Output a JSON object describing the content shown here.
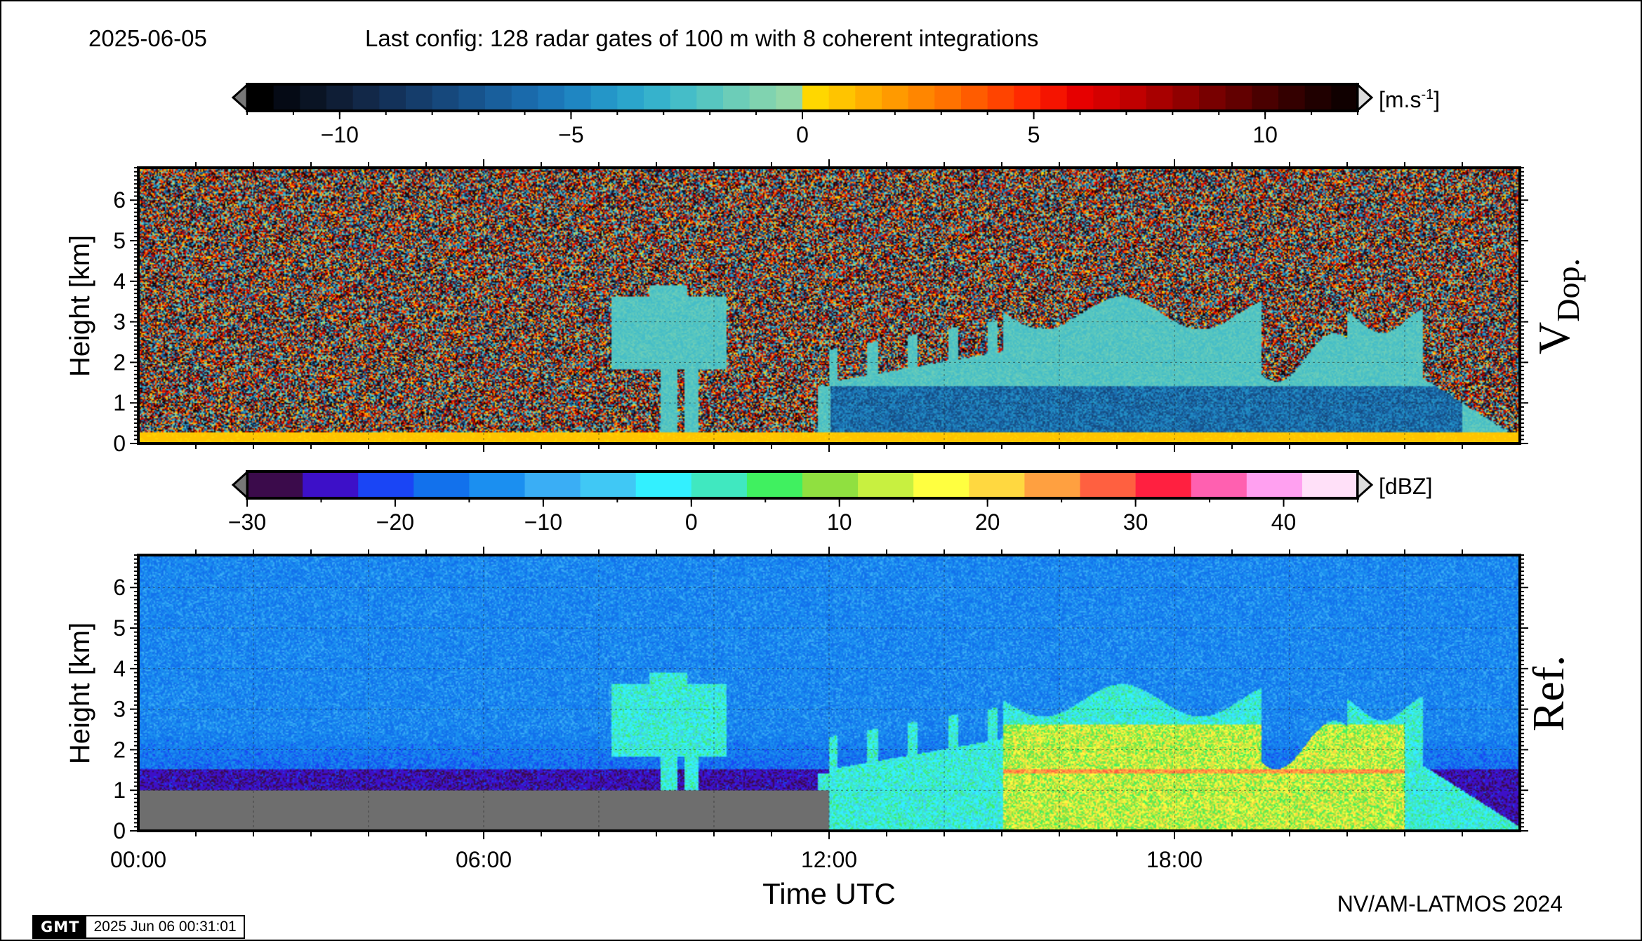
{
  "header": {
    "date": "2025-06-05",
    "config": "Last config: 128 radar gates of 100 m with 8 coherent integrations"
  },
  "footer": {
    "credit": "NV/AM-LATMOS 2024",
    "gmt_logo": "GMT",
    "gmt_timestamp": "2025 Jun 06 00:31:01"
  },
  "chart_data": [
    {
      "type": "heatmap",
      "name": "vdop",
      "panel_label": "V",
      "panel_label_sub": "Dop.",
      "ylabel": "Height [km]",
      "ylim": [
        0,
        6.8
      ],
      "yticks": [
        0,
        1,
        2,
        3,
        4,
        5,
        6
      ],
      "xlim_hours": [
        0,
        24
      ],
      "grid": true,
      "colorbar": {
        "unit_base": "[m.s",
        "unit_sup": "-1",
        "unit_close": "]",
        "range": [
          -12,
          12
        ],
        "ticks": [
          -10,
          -5,
          0,
          5,
          10
        ],
        "tick_labels": [
          "−10",
          "−5",
          "0",
          "5",
          "10"
        ],
        "colors": [
          "#000000",
          "#050a15",
          "#0a1424",
          "#0f1e36",
          "#122848",
          "#13325a",
          "#153d6b",
          "#16487c",
          "#17538c",
          "#195f9c",
          "#1a6aab",
          "#1c77b8",
          "#1f86c2",
          "#2496c8",
          "#2ba5cc",
          "#36b2cc",
          "#45bdc8",
          "#57c6c0",
          "#6ccdb8",
          "#80d3b0",
          "#93d8a9",
          "#ffd700",
          "#ffc400",
          "#ffae00",
          "#ff9a00",
          "#ff8600",
          "#ff7200",
          "#ff5c00",
          "#ff4400",
          "#ff2a00",
          "#f51400",
          "#e60000",
          "#d40000",
          "#c00000",
          "#a80000",
          "#900000",
          "#780000",
          "#620000",
          "#4a0000",
          "#340000",
          "#200000",
          "#100000"
        ]
      }
    },
    {
      "type": "heatmap",
      "name": "reflectivity",
      "panel_label": "Ref.",
      "ylabel": "Height [km]",
      "xlabel": "Time UTC",
      "ylim": [
        0,
        6.8
      ],
      "yticks": [
        0,
        1,
        2,
        3,
        4,
        5,
        6
      ],
      "xlim_hours": [
        0,
        24
      ],
      "xticks_hours": [
        0,
        6,
        12,
        18
      ],
      "xtick_labels": [
        "00:00",
        "06:00",
        "12:00",
        "18:00"
      ],
      "grid": true,
      "colorbar": {
        "unit_base": "[dBZ]",
        "range": [
          -30,
          45
        ],
        "ticks": [
          -30,
          -20,
          -10,
          0,
          10,
          20,
          30,
          40
        ],
        "tick_labels": [
          "−30",
          "−20",
          "−10",
          "0",
          "10",
          "20",
          "30",
          "40"
        ],
        "colors": [
          "#3b0b4b",
          "#3d10c8",
          "#1a45f5",
          "#1271ec",
          "#1b8ff0",
          "#3aaef5",
          "#40c8f5",
          "#33f0ff",
          "#40e8c0",
          "#40f060",
          "#90e040",
          "#c8f040",
          "#ffff40",
          "#ffd840",
          "#ffa040",
          "#ff6040",
          "#ff2040",
          "#ff60b0",
          "#ffa0f0",
          "#ffe0f8"
        ]
      }
    }
  ]
}
